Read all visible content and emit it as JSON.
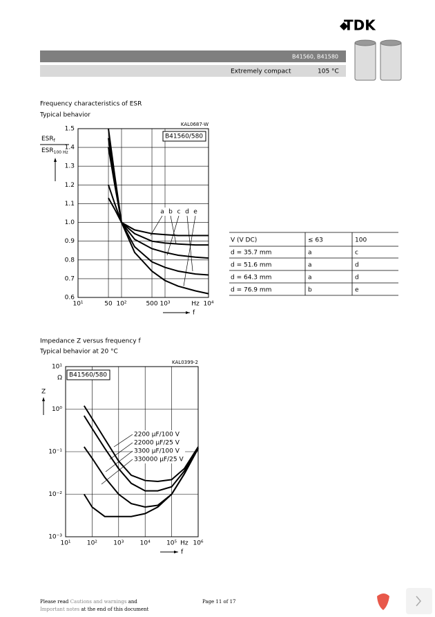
{
  "header": {
    "logo": "TDK",
    "product": "B41560, B41580",
    "subtitle": "Extremely compact",
    "temperature": "105 °C"
  },
  "sections": [
    {
      "title": "Frequency characteristics of ESR",
      "subtitle": "Typical behavior"
    },
    {
      "title": "Impedance Z versus frequency f",
      "subtitle": "Typical behavior at 20 °C"
    }
  ],
  "table": {
    "header": [
      "V (V DC)",
      "≤ 63",
      "100"
    ],
    "rows": [
      [
        "d = 35.7 mm",
        "a",
        "c"
      ],
      [
        "d = 51.6 mm",
        "a",
        "d"
      ],
      [
        "d = 64.3 mm",
        "a",
        "d"
      ],
      [
        "d = 76.9 mm",
        "b",
        "e"
      ]
    ]
  },
  "footer": {
    "note_start": "Please read",
    "note_link": "Cautions and warnings",
    "note_mid": "and",
    "note_link2": "Important notes",
    "note_end": "at the end of this document",
    "page": "Page 11 of 17"
  },
  "chart_data": [
    {
      "type": "line",
      "code": "KAL0687-W",
      "title": "B41560/580",
      "y_label": {
        "numerator": "ESR",
        "numerator_sub": "f",
        "denominator": "ESR",
        "denominator_sub": "100 Hz"
      },
      "x_label": "f",
      "x_unit": "Hz",
      "xscale": "log",
      "yscale": "linear",
      "grid": true,
      "xlim": [
        10,
        10000
      ],
      "ylim": [
        0.6,
        1.5
      ],
      "xticks": [
        {
          "value": 10,
          "label": "10¹"
        },
        50,
        {
          "value": 100,
          "label": "10²"
        },
        500,
        {
          "value": 1000,
          "label": "10³"
        },
        {
          "value": 10000,
          "label": "10⁴"
        }
      ],
      "yticks": [
        0.6,
        0.7,
        0.8,
        0.9,
        {
          "value": 1,
          "label": "1.0"
        },
        1.1,
        1.2,
        1.3,
        1.4,
        1.5
      ],
      "x": [
        50,
        70,
        100,
        200,
        500,
        1000,
        2000,
        5000,
        10000
      ],
      "series": [
        {
          "name": "a",
          "color": "#000000",
          "values": [
            1.13,
            1.07,
            1.0,
            0.96,
            0.94,
            0.935,
            0.93,
            0.93,
            0.93
          ]
        },
        {
          "name": "b",
          "color": "#000000",
          "values": [
            1.2,
            1.1,
            1.0,
            0.94,
            0.9,
            0.89,
            0.885,
            0.88,
            0.88
          ]
        },
        {
          "name": "c",
          "color": "#000000",
          "values": [
            1.4,
            1.2,
            1.0,
            0.91,
            0.86,
            0.84,
            0.825,
            0.815,
            0.81
          ]
        },
        {
          "name": "d",
          "color": "#000000",
          "values": [
            1.45,
            1.22,
            1.0,
            0.87,
            0.79,
            0.76,
            0.74,
            0.725,
            0.72
          ]
        },
        {
          "name": "e",
          "color": "#000000",
          "values": [
            1.5,
            1.25,
            1.0,
            0.84,
            0.74,
            0.69,
            0.66,
            0.635,
            0.62
          ]
        }
      ]
    },
    {
      "type": "line",
      "code": "KAL0399-2",
      "title": "B41560/580",
      "y_label": "Z",
      "y_unit": "Ω",
      "x_label": "f",
      "x_unit": "Hz",
      "xscale": "log",
      "yscale": "log",
      "grid": true,
      "xlim": [
        10,
        1000000
      ],
      "ylim": [
        0.001,
        10
      ],
      "xticks": [
        {
          "value": 10,
          "label": "10¹"
        },
        {
          "value": 100,
          "label": "10²"
        },
        {
          "value": 1000,
          "label": "10³"
        },
        {
          "value": 10000,
          "label": "10⁴"
        },
        {
          "value": 100000,
          "label": "10⁵"
        },
        {
          "value": 1000000,
          "label": "10⁶"
        }
      ],
      "yticks": [
        {
          "value": 0.001,
          "label": "10⁻³"
        },
        {
          "value": 0.01,
          "label": "10⁻²"
        },
        {
          "value": 0.1,
          "label": "10⁻¹"
        },
        {
          "value": 1,
          "label": "10⁰"
        },
        {
          "value": 10,
          "label": "10¹"
        }
      ],
      "x": [
        50,
        100,
        300,
        1000,
        3000,
        10000,
        30000,
        100000,
        300000,
        1000000
      ],
      "series": [
        {
          "name": "2200 µF/100 V",
          "color": "#000000",
          "values": [
            1.2,
            0.6,
            0.2,
            0.06,
            0.028,
            0.021,
            0.02,
            0.022,
            0.04,
            0.13
          ]
        },
        {
          "name": "22000 µF/25 V",
          "color": "#000000",
          "values": [
            0.13,
            0.07,
            0.025,
            0.01,
            0.006,
            0.005,
            0.0055,
            0.01,
            0.03,
            0.12
          ]
        },
        {
          "name": "3300 µF/100 V",
          "color": "#000000",
          "values": [
            0.7,
            0.35,
            0.12,
            0.04,
            0.018,
            0.012,
            0.012,
            0.015,
            0.035,
            0.12
          ]
        },
        {
          "name": "330000 µF/25 V",
          "color": "#000000",
          "values": [
            0.01,
            0.005,
            0.003,
            0.003,
            0.003,
            0.0035,
            0.005,
            0.01,
            0.03,
            0.12
          ]
        }
      ]
    }
  ]
}
